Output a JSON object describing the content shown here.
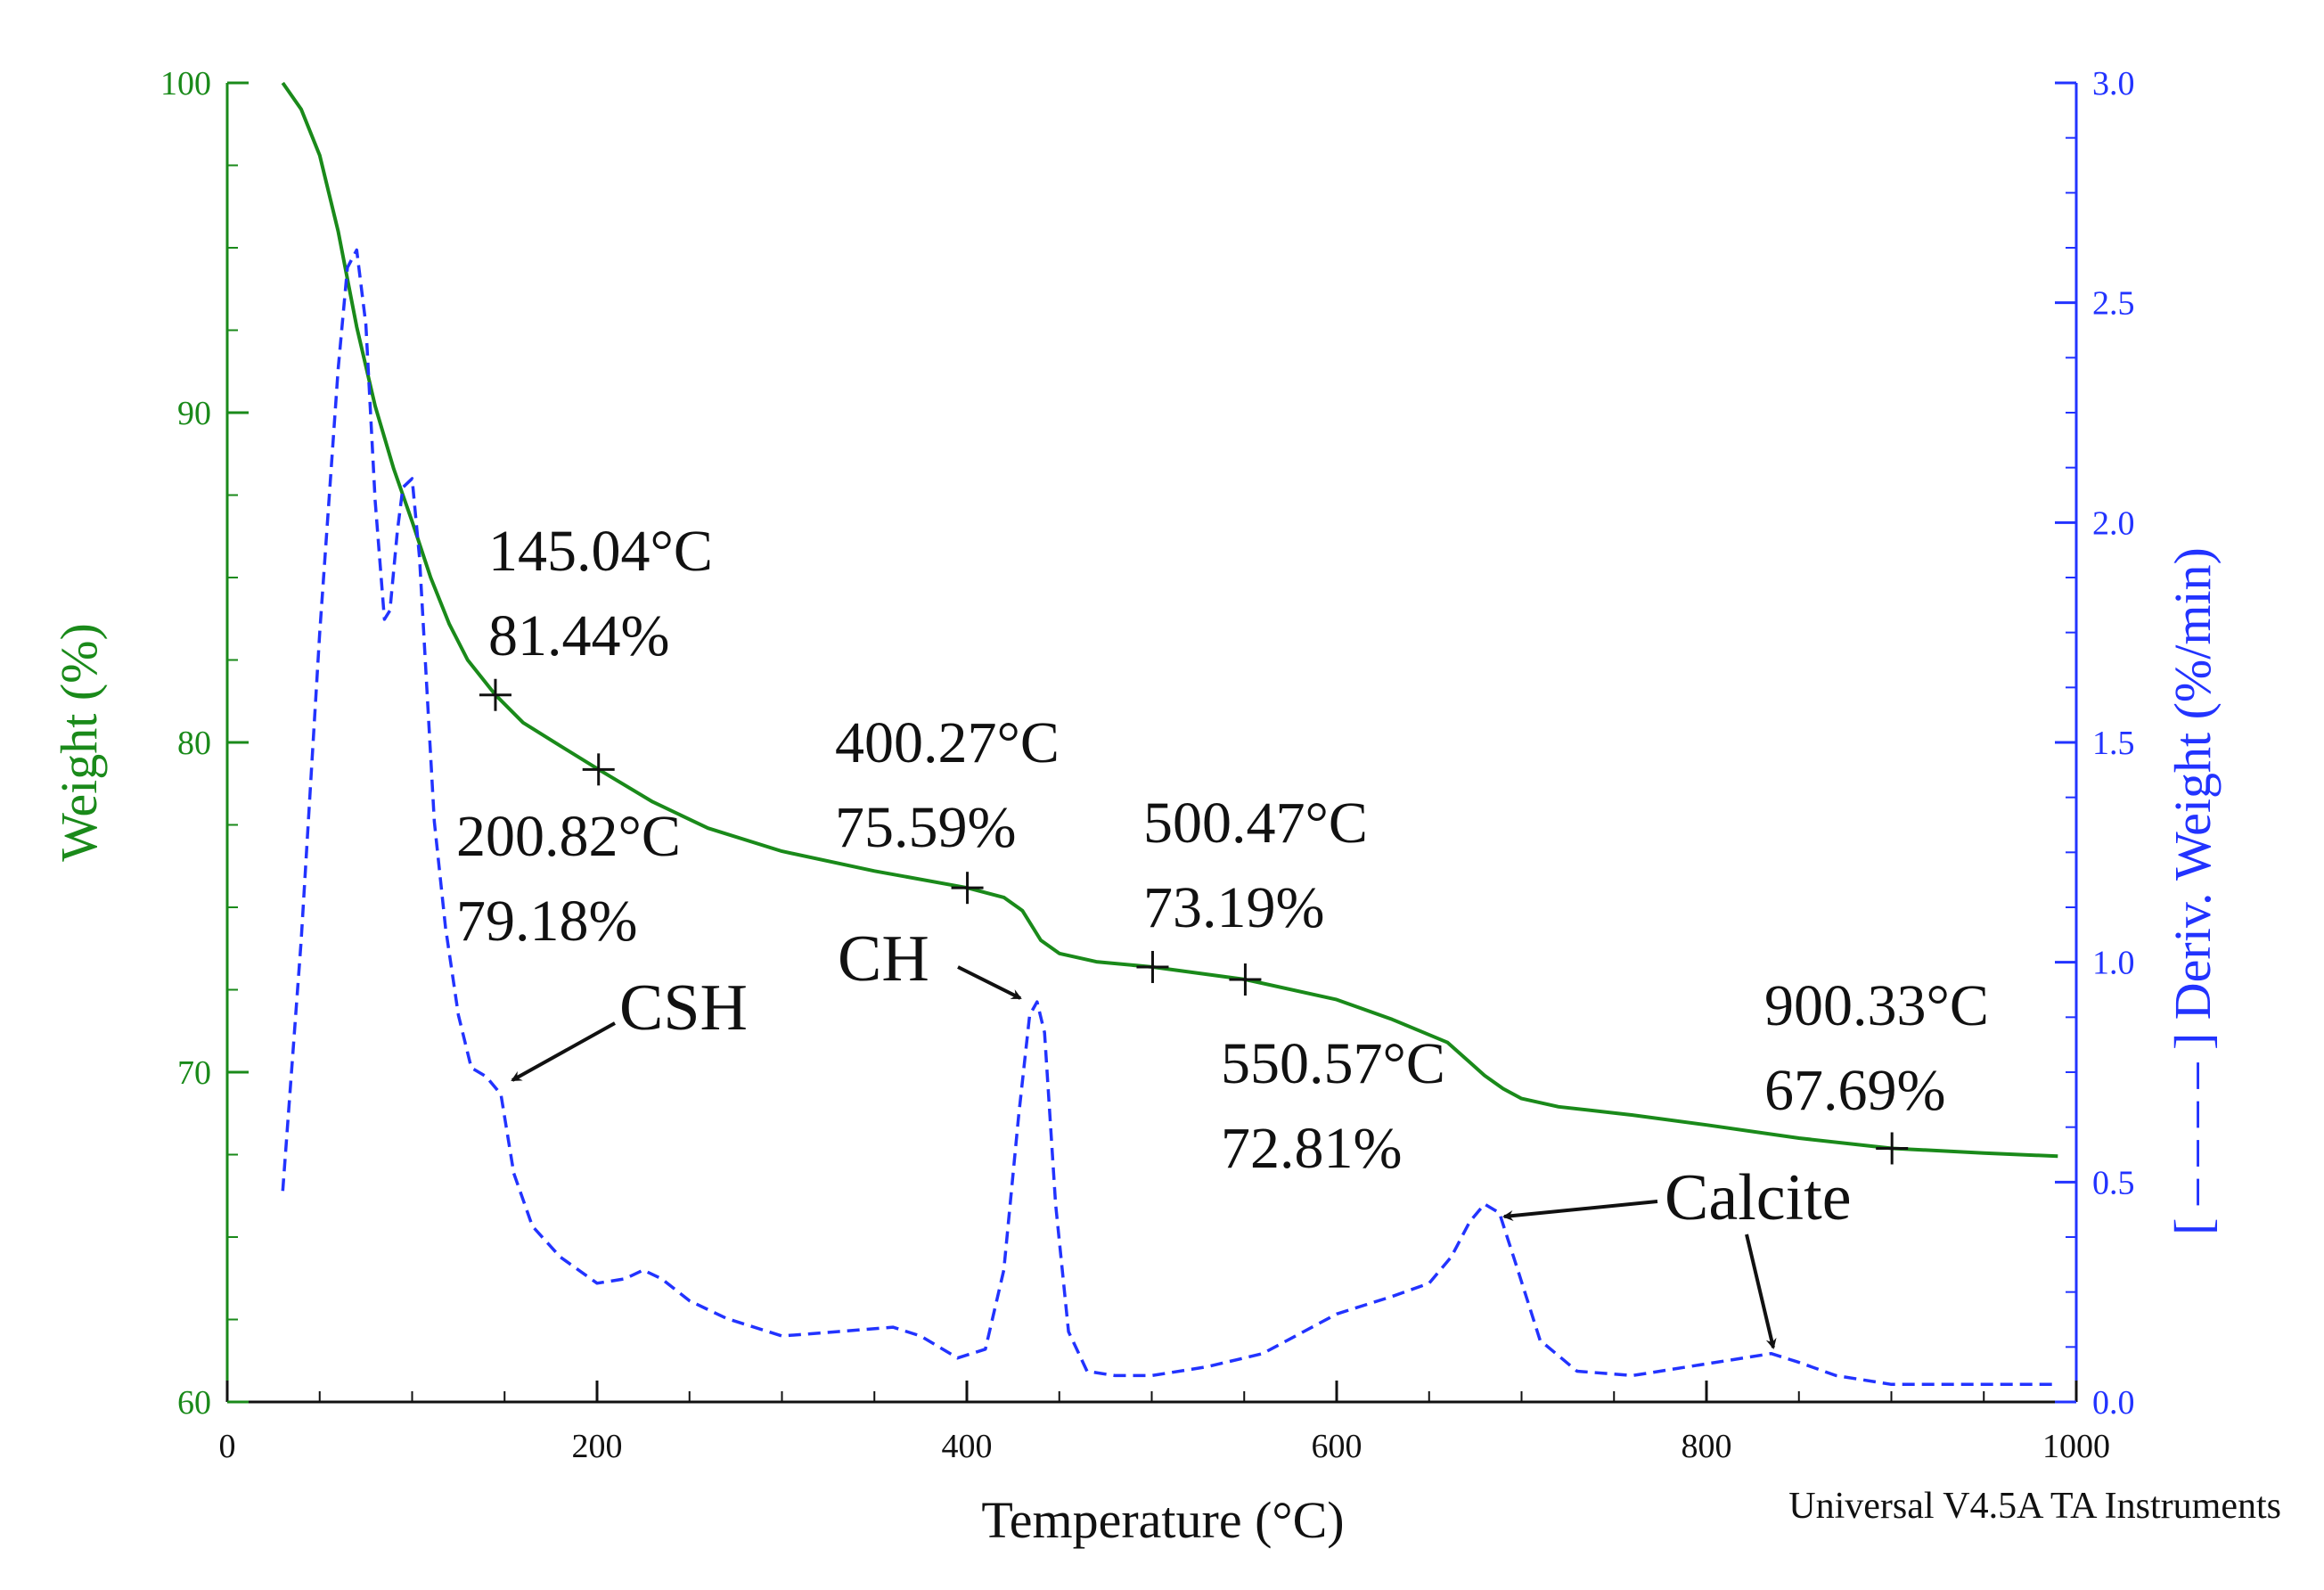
{
  "chart_data": {
    "type": "line",
    "title": "",
    "xlabel": "Temperature (°C)",
    "ylabel_left": "Weight (%)",
    "ylabel_right": "[ – – – – ] Deriv. Weight (%/min)",
    "xlim": [
      0,
      1000
    ],
    "ylim_left": [
      60,
      100
    ],
    "ylim_right": [
      0.0,
      3.0
    ],
    "x_ticks": [
      "0",
      "200",
      "400",
      "600",
      "800",
      "1000"
    ],
    "left_ticks": [
      "60",
      "70",
      "80",
      "90",
      "100"
    ],
    "right_ticks": [
      "0.0",
      "0.5",
      "1.0",
      "1.5",
      "2.0",
      "2.5",
      "3.0"
    ],
    "grid": false,
    "colors": {
      "weight": "#1a8a1a",
      "deriv": "#2233ff",
      "left_axis": "#1a8a1a",
      "right_axis": "#2233ff",
      "text": "#111111"
    },
    "series": [
      {
        "name": "Weight (%)",
        "axis": "left",
        "style": "solid",
        "x": [
          30,
          40,
          50,
          60,
          70,
          80,
          90,
          100,
          110,
          120,
          130,
          145.04,
          160,
          180,
          200.82,
          230,
          260,
          300,
          350,
          400.27,
          420,
          430,
          440,
          450,
          470,
          500.47,
          550.57,
          600,
          630,
          660,
          670,
          680,
          690,
          700,
          720,
          760,
          800,
          850,
          900.33,
          950,
          990
        ],
        "values": [
          100,
          99.2,
          97.8,
          95.5,
          92.6,
          90.2,
          88.3,
          86.7,
          85.0,
          83.6,
          82.5,
          81.44,
          80.6,
          79.9,
          79.18,
          78.2,
          77.4,
          76.7,
          76.1,
          75.59,
          75.3,
          74.9,
          74.0,
          73.6,
          73.35,
          73.19,
          72.81,
          72.2,
          71.6,
          70.9,
          70.4,
          69.9,
          69.5,
          69.2,
          68.95,
          68.7,
          68.4,
          68.0,
          67.69,
          67.55,
          67.45
        ]
      },
      {
        "name": "Deriv. Weight (%/min)",
        "axis": "right",
        "style": "dashed",
        "x": [
          30,
          40,
          50,
          60,
          65,
          70,
          75,
          80,
          85,
          88,
          92,
          95,
          100,
          104,
          108,
          112,
          118,
          125,
          132,
          140,
          148,
          155,
          165,
          180,
          200,
          215,
          225,
          235,
          250,
          270,
          300,
          330,
          360,
          375,
          395,
          410,
          420,
          428,
          434,
          438,
          442,
          448,
          455,
          465,
          480,
          500,
          530,
          560,
          600,
          630,
          650,
          662,
          672,
          680,
          688,
          698,
          710,
          730,
          760,
          790,
          820,
          835,
          850,
          870,
          900,
          950,
          990
        ],
        "values": [
          0.48,
          1.05,
          1.75,
          2.35,
          2.58,
          2.62,
          2.45,
          2.05,
          1.78,
          1.8,
          1.98,
          2.08,
          2.1,
          1.92,
          1.62,
          1.32,
          1.08,
          0.88,
          0.76,
          0.74,
          0.7,
          0.52,
          0.4,
          0.33,
          0.27,
          0.28,
          0.3,
          0.28,
          0.23,
          0.19,
          0.15,
          0.16,
          0.17,
          0.15,
          0.1,
          0.12,
          0.3,
          0.65,
          0.88,
          0.91,
          0.84,
          0.45,
          0.16,
          0.07,
          0.06,
          0.06,
          0.08,
          0.11,
          0.2,
          0.24,
          0.27,
          0.33,
          0.41,
          0.45,
          0.43,
          0.3,
          0.14,
          0.07,
          0.06,
          0.08,
          0.1,
          0.11,
          0.09,
          0.06,
          0.04,
          0.04,
          0.04
        ]
      }
    ],
    "markers": [
      {
        "x": 145.04,
        "y": 81.44,
        "temp": "145.04°C",
        "weight": "81.44%"
      },
      {
        "x": 200.82,
        "y": 79.18,
        "temp": "200.82°C",
        "weight": "79.18%"
      },
      {
        "x": 400.27,
        "y": 75.59,
        "temp": "400.27°C",
        "weight": "75.59%"
      },
      {
        "x": 500.47,
        "y": 73.19,
        "temp": "500.47°C",
        "weight": "73.19%"
      },
      {
        "x": 550.57,
        "y": 72.81,
        "temp": "550.57°C",
        "weight": "72.81%"
      },
      {
        "x": 900.33,
        "y": 67.69,
        "temp": "900.33°C",
        "weight": "67.69%"
      }
    ],
    "annotations": [
      {
        "text": "CSH",
        "points_to": {
          "x": 155,
          "y": 0.73
        }
      },
      {
        "text": "CH",
        "points_to": {
          "x": 428,
          "y": 0.9
        }
      },
      {
        "text": "Calcite",
        "points_to": [
          {
            "x": 687,
            "y": 0.42
          },
          {
            "x": 833,
            "y": 0.12
          }
        ]
      }
    ],
    "footer": "Universal V4.5A TA Instruments"
  }
}
